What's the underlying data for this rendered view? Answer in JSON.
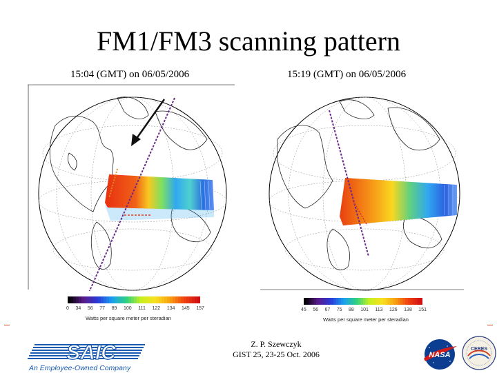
{
  "title": "FM1/FM3 scanning pattern",
  "left_panel": {
    "subtitle": "15:04 (GMT) on 06/05/2006",
    "colorbar_ticks": [
      "0",
      "34",
      "56",
      "77",
      "89",
      "100",
      "111",
      "122",
      "134",
      "145",
      "157"
    ],
    "colorbar_label": "Watts per square meter per steradian"
  },
  "right_panel": {
    "subtitle": "15:19 (GMT) on 06/05/2006",
    "colorbar_ticks": [
      "45",
      "56",
      "67",
      "75",
      "88",
      "101",
      "113",
      "126",
      "138",
      "151"
    ],
    "colorbar_label": "Watts per square meter per steradian"
  },
  "footer": {
    "author": "Z. P. Szewczyk",
    "event": "GIST 25, 23-25 Oct. 2006",
    "saic_text": "SAIC",
    "saic_tagline": "An Employee-Owned Company",
    "nasa_text": "NASA",
    "ceres_text": "CERES"
  },
  "colors": {
    "colorbar": [
      "#000000",
      "#5a1a8a",
      "#2a3ad8",
      "#1aa0f0",
      "#30d080",
      "#c8f020",
      "#f8e020",
      "#f8a010",
      "#f04010",
      "#d01010"
    ],
    "arrow": "#111111",
    "track_purple": "#6a2a8a",
    "track_orange": "#e08a20",
    "saic_blue": "#1a5ab0",
    "nasa_blue": "#0b3d91",
    "nasa_red": "#d11a1a"
  }
}
